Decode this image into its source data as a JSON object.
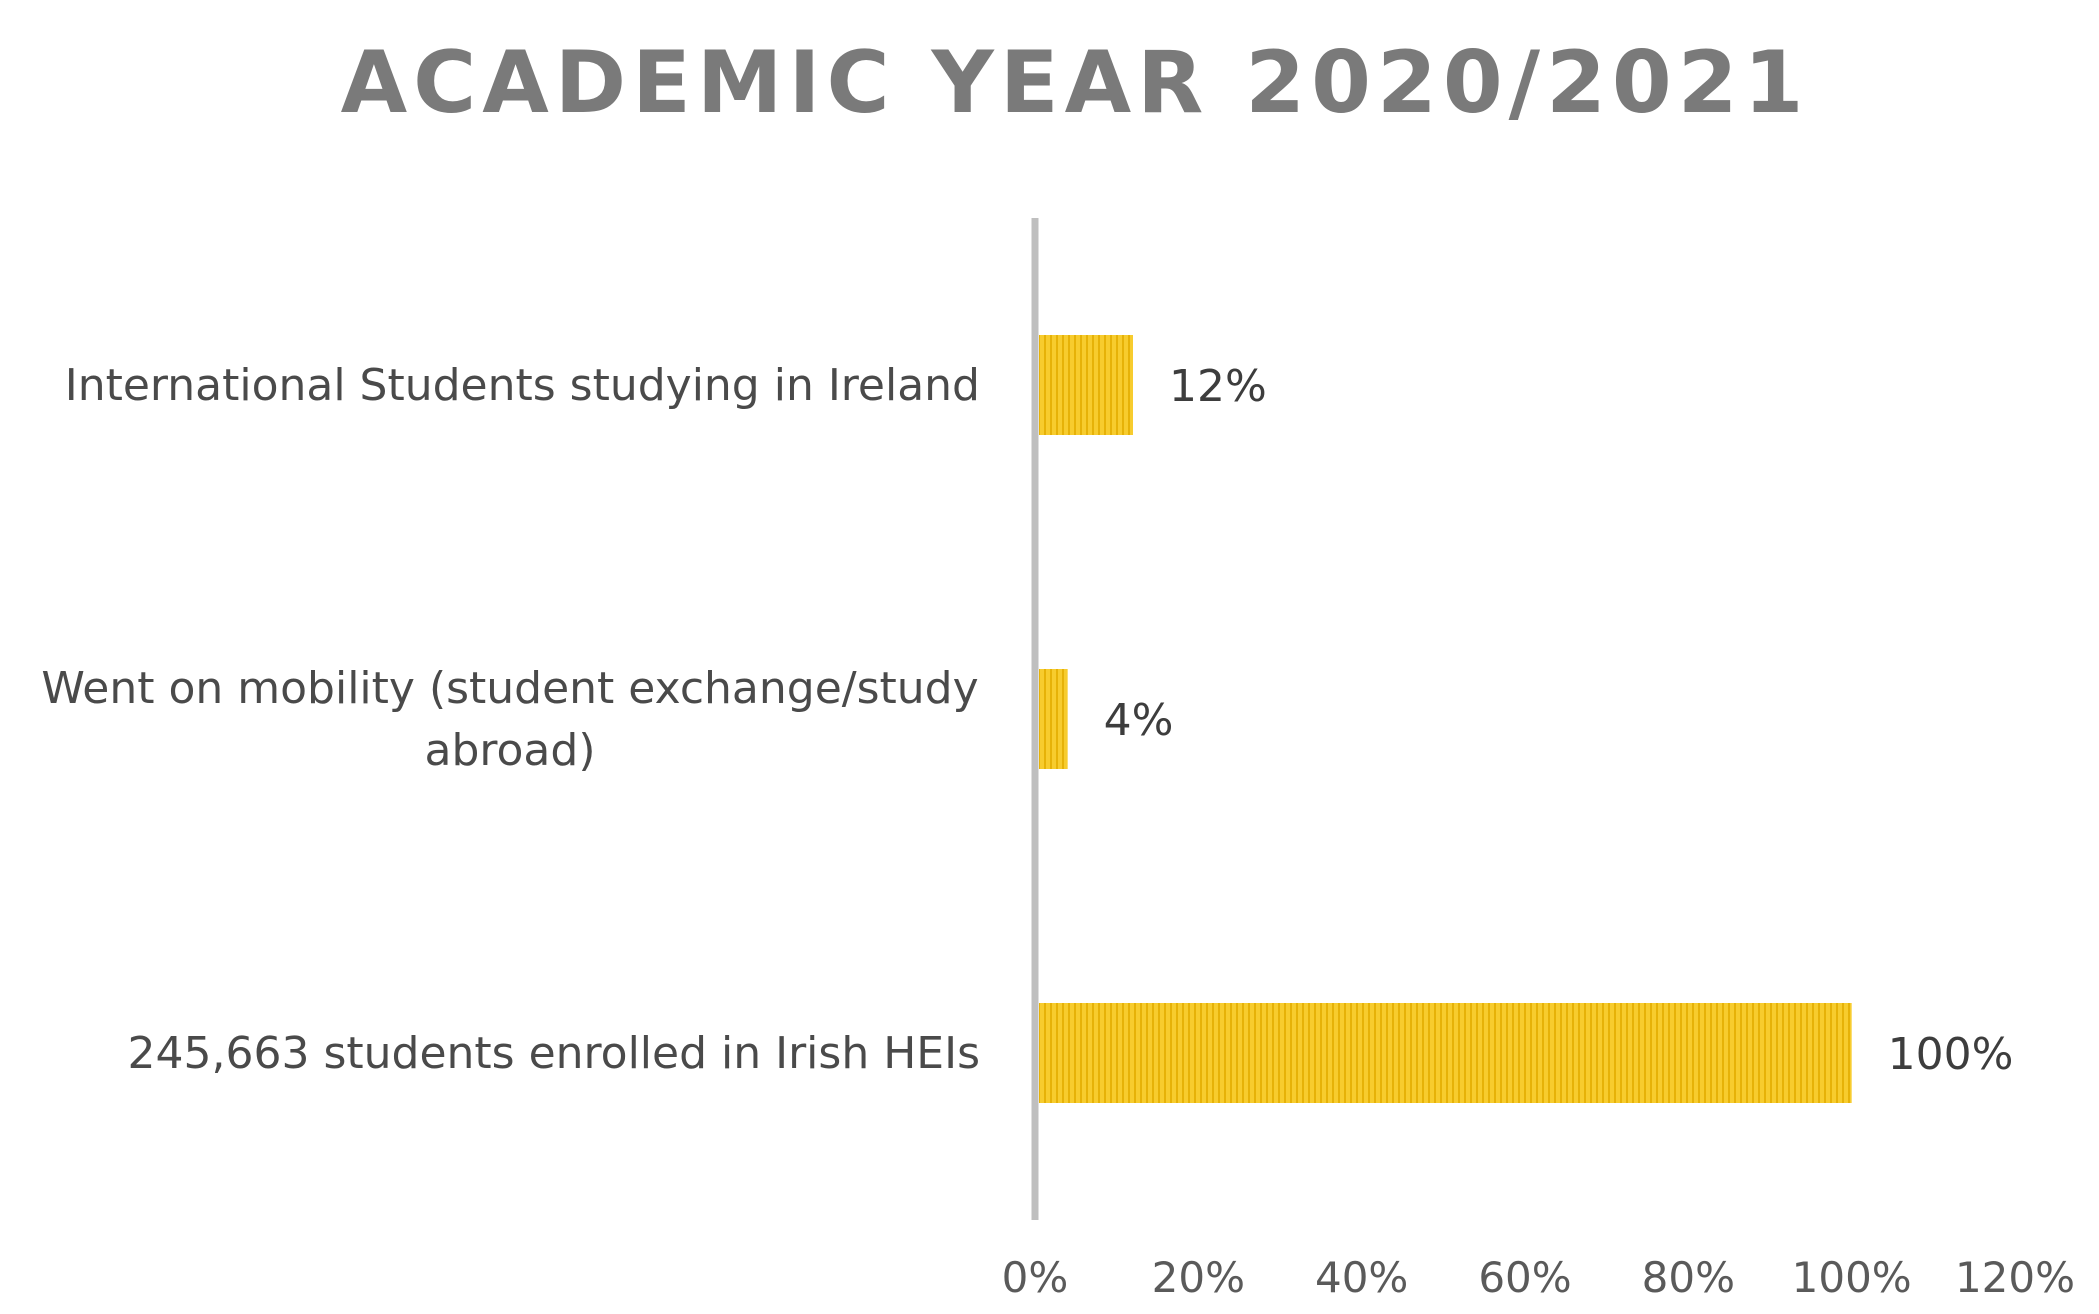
{
  "chart_data": {
    "type": "bar",
    "orientation": "horizontal",
    "title": "ACADEMIC YEAR 2020/2021",
    "categories": [
      "International Students studying in Ireland",
      "Went on mobility (student exchange/study abroad)",
      "245,663 students enrolled in Irish HEIs"
    ],
    "values": [
      12,
      4,
      100
    ],
    "data_labels": [
      "12%",
      "4%",
      "100%"
    ],
    "xlim": [
      0,
      120
    ],
    "x_ticks": [
      0,
      20,
      40,
      60,
      80,
      100,
      120
    ],
    "x_tick_labels": [
      "0%",
      "20%",
      "40%",
      "60%",
      "80%",
      "100%",
      "120%"
    ],
    "xlabel": "",
    "ylabel": "",
    "grid": false,
    "legend": "none",
    "colors": {
      "bar_fill": "#f5c518",
      "bar_stripe": "#e8b400",
      "axis": "#bfbfbf",
      "title": "#7a7a7a"
    }
  }
}
